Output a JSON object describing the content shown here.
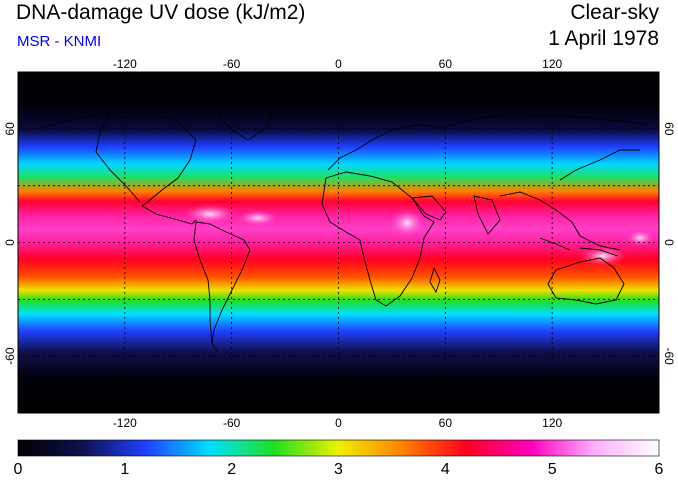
{
  "header": {
    "title": "DNA-damage UV dose (kJ/m2)",
    "source": "MSR - KNMI",
    "condition": "Clear-sky",
    "date": "1 April 1978"
  },
  "map": {
    "projection": "equirectangular",
    "lon_range": [
      -180,
      180
    ],
    "lat_range": [
      -90,
      90
    ],
    "gridlines": "dotted",
    "lon_ticks": [
      -120,
      -60,
      0,
      60,
      120
    ],
    "lat_ticks": [
      60,
      0,
      -60
    ],
    "lon_tick_labels": [
      "-120",
      "-60",
      "0",
      "60",
      "120"
    ],
    "lat_tick_labels": [
      "60",
      "0",
      "-60"
    ]
  },
  "colorbar": {
    "min": 0,
    "max": 6,
    "tick_labels": [
      "0",
      "1",
      "2",
      "3",
      "4",
      "5",
      "6"
    ],
    "colors": [
      "#000000",
      "#101050",
      "#2040ff",
      "#00e0ff",
      "#20e020",
      "#f0f000",
      "#ff8000",
      "#ff0020",
      "#ff00c0",
      "#ffb0ff",
      "#ffffff"
    ]
  }
}
